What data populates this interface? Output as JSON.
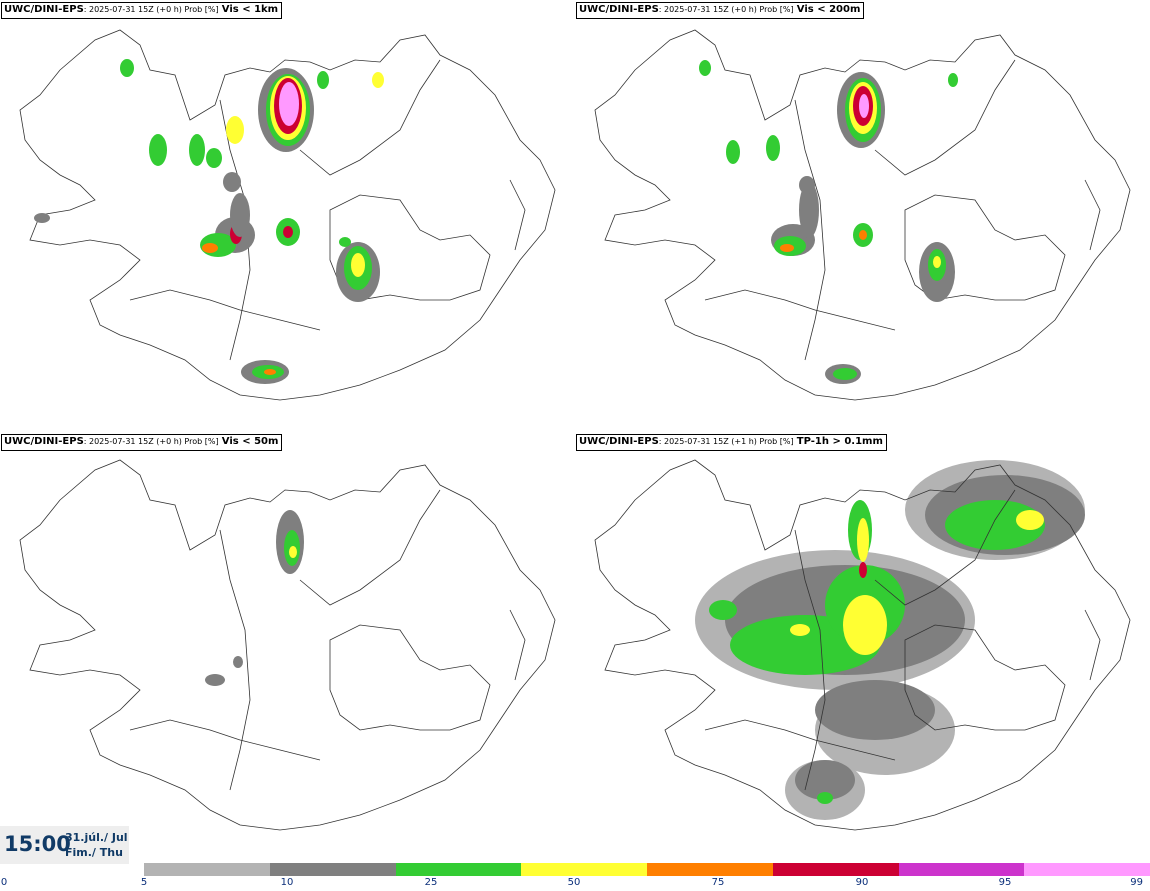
{
  "panels": [
    {
      "id": "p1",
      "source": "UWC/DINI-EPS",
      "meta": ": 2025-07-31 15Z (+0 h) Prob [%]",
      "variable": "Vis < 1km"
    },
    {
      "id": "p2",
      "source": "UWC/DINI-EPS",
      "meta": ": 2025-07-31 15Z (+0 h) Prob [%]",
      "variable": "Vis < 200m"
    },
    {
      "id": "p3",
      "source": "UWC/DINI-EPS",
      "meta": ": 2025-07-31 15Z (+0 h) Prob [%]",
      "variable": "Vis < 50m"
    },
    {
      "id": "p4",
      "source": "UWC/DINI-EPS",
      "meta": ": 2025-07-31 15Z (+1 h) Prob [%]",
      "variable": "TP-1h > 0.1mm"
    }
  ],
  "clock": {
    "time": "15:00",
    "date_line1": "31.júl./ Jul",
    "date_line2": "Fim./ Thu"
  },
  "scale": {
    "ticks": [
      "0",
      "5",
      "10",
      "25",
      "50",
      "75",
      "90",
      "95",
      "99"
    ],
    "colors": [
      "#b3b3b3",
      "#7f7f7f",
      "#33cc33",
      "#ffff33",
      "#ff7f00",
      "#cc0033",
      "#cc33cc",
      "#ff99ff"
    ]
  },
  "levels": {
    "gray_light": "#b3b3b3",
    "gray_dark": "#7f7f7f",
    "green": "#33cc33",
    "yellow": "#ffff33",
    "orange": "#ff7f00",
    "red": "#cc0033",
    "magenta": "#cc33cc",
    "pink": "#ff99ff"
  }
}
